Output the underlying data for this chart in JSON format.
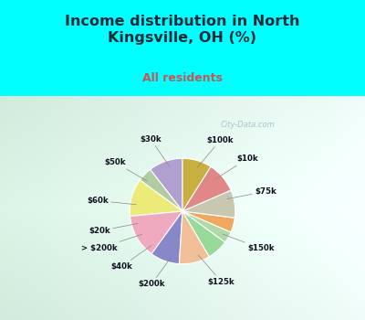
{
  "title": "Income distribution in North\nKingsville, OH (%)",
  "subtitle": "All residents",
  "labels": [
    "$100k",
    "$10k",
    "$75k",
    "$150k",
    "$125k",
    "$200k",
    "$40k",
    "> $200k",
    "$20k",
    "$60k",
    "$50k",
    "$30k"
  ],
  "values": [
    10.5,
    4.5,
    11.5,
    13.5,
    9.0,
    9.5,
    6.5,
    3.5,
    4.5,
    8.5,
    9.5,
    9.0
  ],
  "colors": [
    "#b0a0d0",
    "#b0cca0",
    "#ecea78",
    "#f0aabf",
    "#8888c8",
    "#f2c098",
    "#98d898",
    "#b0d8a8",
    "#f0a860",
    "#c8c8b0",
    "#e08888",
    "#c8b040"
  ],
  "background_top": "#00ffff",
  "title_color": "#1a2a3a",
  "subtitle_color": "#c05858",
  "watermark": "City-Data.com",
  "startangle": 90,
  "chart_bg_left": "#c8e8d8",
  "chart_bg_right": "#e8f8f0",
  "chart_bg_top": "#f0f8f4",
  "chart_bg_bottom": "#d0ece0"
}
